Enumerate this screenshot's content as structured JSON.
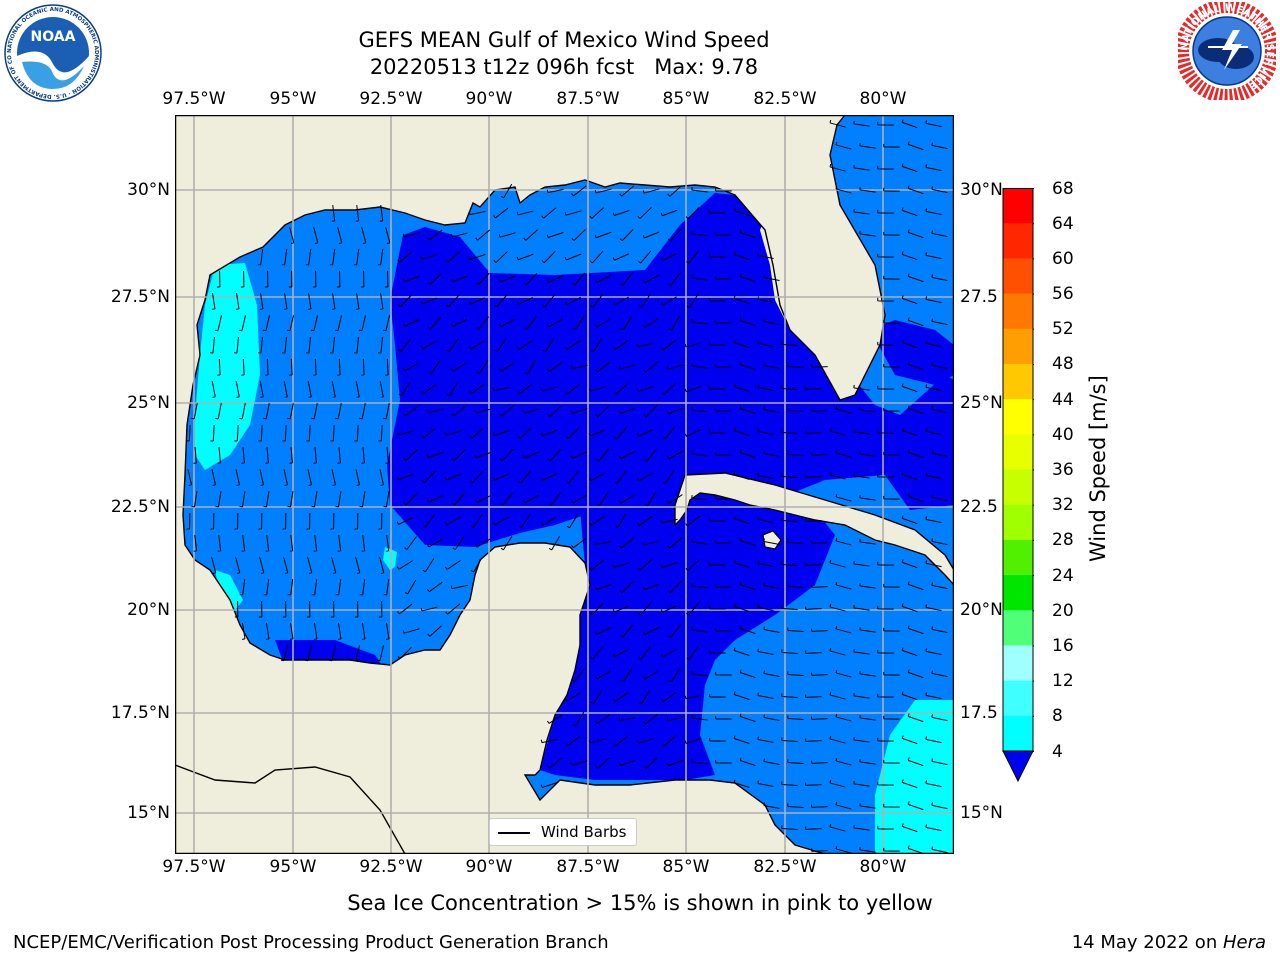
{
  "header": {
    "title_line1": "GEFS MEAN Gulf of Mexico Wind Speed",
    "title_line2": "20220513 t12z 096h fcst   Max: 9.78"
  },
  "logos": {
    "left": "NOAA",
    "left_ring": "NATIONAL OCEANIC AND ATMOSPHERIC ADMINISTRATION · U.S. DEPARTMENT OF COMMERCE",
    "right_ring": "NATIONAL WEATHER SERVICE"
  },
  "map": {
    "lon_labels": [
      "97.5°W",
      "95°W",
      "92.5°W",
      "90°W",
      "87.5°W",
      "85°W",
      "82.5°W",
      "80°W"
    ],
    "lat_labels_left": [
      "30°N",
      "27.5°N",
      "25°N",
      "22.5°N",
      "20°N",
      "17.5°N",
      "15°N"
    ],
    "lat_labels_right": [
      "30°N",
      "27.5",
      "25°N",
      "22.5",
      "20°N",
      "17.5",
      "15°N"
    ],
    "legend_label": "Wind Barbs",
    "colors": {
      "land": "#efeddc",
      "band_4_8": "#0080ff",
      "below_4": "#0000f0",
      "band_8_12": "#00ffff",
      "band_12_16": "#40ffff"
    }
  },
  "colorbar": {
    "title": "Wind Speed [m/s]",
    "ticks": [
      "68",
      "64",
      "60",
      "56",
      "52",
      "48",
      "44",
      "40",
      "36",
      "32",
      "28",
      "24",
      "20",
      "16",
      "12",
      "8",
      "4"
    ],
    "colors": [
      "#ff0000",
      "#ff2600",
      "#ff4f00",
      "#ff7800",
      "#ff9e00",
      "#ffc800",
      "#ffff00",
      "#e8ff00",
      "#c8ff00",
      "#a0ff00",
      "#50f000",
      "#00e600",
      "#50ff78",
      "#a0ffff",
      "#40ffff",
      "#00ffff",
      "#0080ff"
    ],
    "under_color": "#0000f0"
  },
  "footer": {
    "note": "Sea Ice Concentration > 15% is shown in pink to yellow",
    "left": "NCEP/EMC/Verification Post Processing Product Generation Branch",
    "right_prefix": "14 May 2022 on ",
    "right_host": "Hera"
  }
}
